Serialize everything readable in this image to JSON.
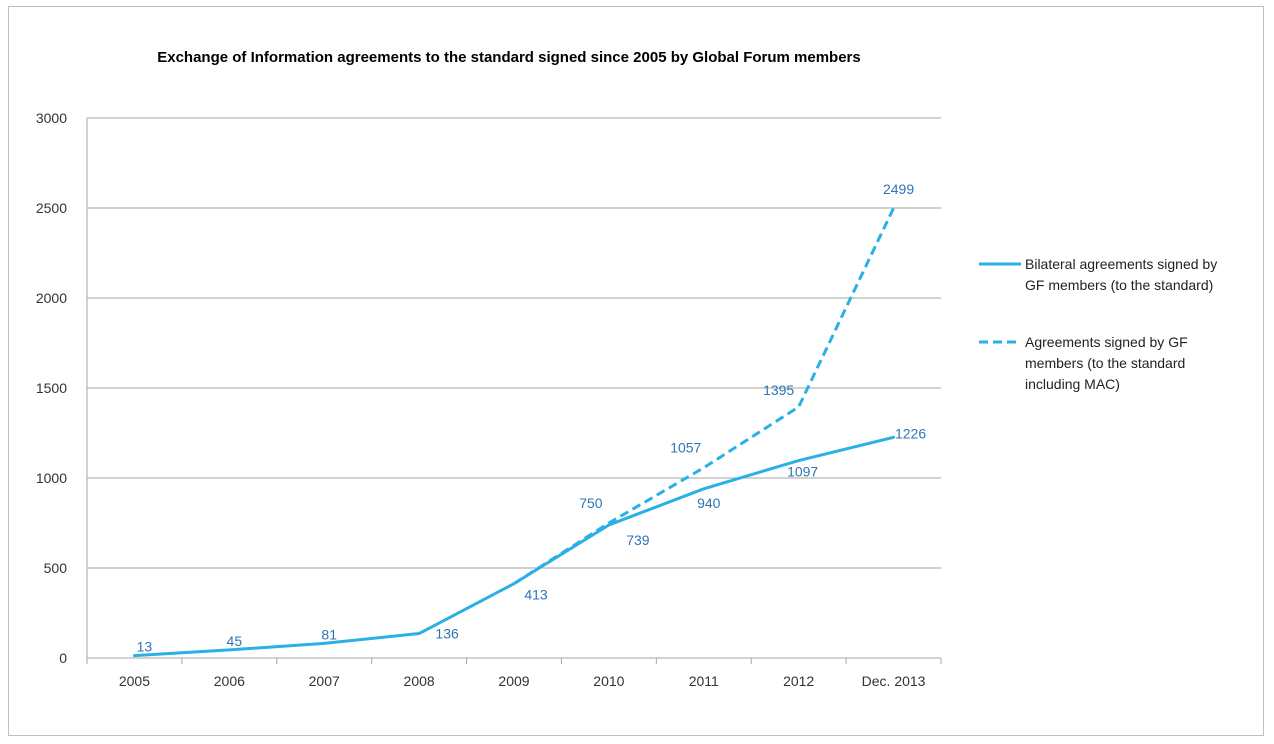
{
  "chart_data": {
    "type": "line",
    "title": "Exchange of Information agreements to the standard signed since 2005 by Global Forum members",
    "categories": [
      "2005",
      "2006",
      "2007",
      "2008",
      "2009",
      "2010",
      "2011",
      "2012",
      "Dec. 2013"
    ],
    "ylim": [
      0,
      3000
    ],
    "yticks": [
      0,
      500,
      1000,
      1500,
      2000,
      2500,
      3000
    ],
    "grid": true,
    "legend_position": "right",
    "series": [
      {
        "name": "Bilateral agreements signed by GF members (to the standard)",
        "legend_lines": [
          "Bilateral agreements signed by",
          "GF members (to the standard)"
        ],
        "style": "solid",
        "color": "#2ab0e4",
        "values": [
          13,
          45,
          81,
          136,
          413,
          739,
          940,
          1097,
          1226
        ],
        "labels": [
          "13",
          "45",
          "81",
          "136",
          "413",
          "739",
          "940",
          "1097",
          "1226"
        ]
      },
      {
        "name": "Agreements signed by GF members (to the standard including MAC)",
        "legend_lines": [
          "Agreements signed by GF",
          "members (to the standard",
          "including MAC)"
        ],
        "style": "dashed",
        "color": "#2ab0e4",
        "values": [
          null,
          null,
          null,
          null,
          413,
          750,
          1057,
          1395,
          2499
        ],
        "labels": [
          "",
          "",
          "",
          "",
          "",
          "750",
          "1057",
          "1395",
          "2499"
        ]
      }
    ]
  }
}
